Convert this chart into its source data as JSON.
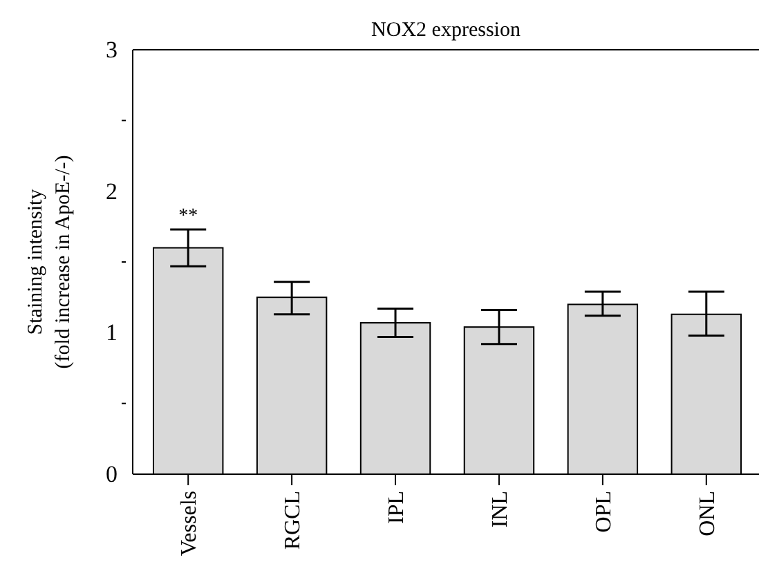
{
  "chart_data": {
    "type": "bar",
    "title": "NOX2 expression",
    "ylabel": "Staining intensity\n(fold increase in ApoE-/-)",
    "categories": [
      "Vessels",
      "RGCL",
      "IPL",
      "INL",
      "OPL",
      "ONL"
    ],
    "values": [
      1.6,
      1.25,
      1.07,
      1.04,
      1.2,
      1.13
    ],
    "errors": [
      [
        1.47,
        1.73
      ],
      [
        1.13,
        1.36
      ],
      [
        0.97,
        1.17
      ],
      [
        0.92,
        1.16
      ],
      [
        1.12,
        1.29
      ],
      [
        0.98,
        1.29
      ]
    ],
    "color": "#d9d9d9",
    "ylim": [
      0,
      3
    ],
    "yticks": [
      0,
      {
        "value": 0.5,
        "label": null
      },
      1,
      {
        "value": 1.5,
        "label": null
      },
      2,
      {
        "value": 2.5,
        "label": null
      },
      3
    ],
    "annotations": [
      "**"
    ]
  }
}
